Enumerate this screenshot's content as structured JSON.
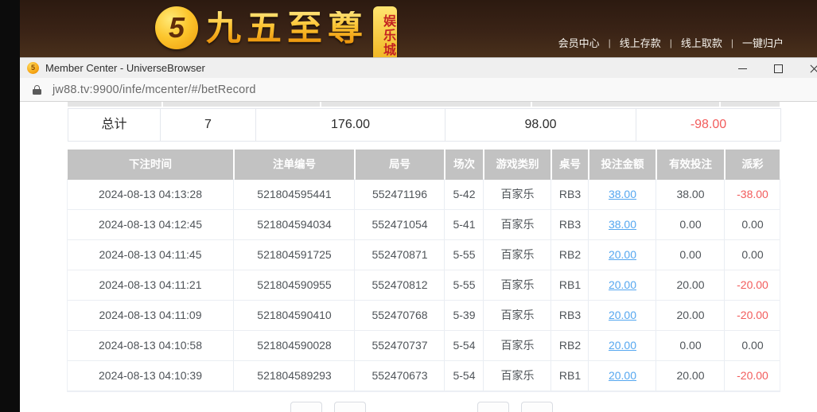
{
  "site_header": {
    "logo_glyph": "5",
    "brand_name": "九五至尊",
    "brand_badge": "娱乐城",
    "nav_separator": "|",
    "nav_links": [
      {
        "id": "member-center",
        "label": "会员中心"
      },
      {
        "id": "online-deposit",
        "label": "线上存款"
      },
      {
        "id": "online-withdraw",
        "label": "线上取款"
      },
      {
        "id": "one-key-transfer",
        "label": "一键归户"
      }
    ]
  },
  "browser": {
    "window_title": "Member Center - UniverseBrowser",
    "url": "jw88.tv:9900/infe/mcenter/#/betRecord"
  },
  "summary_row": {
    "label": "总计",
    "count": "7",
    "bet_amount": "176.00",
    "valid_bet": "98.00",
    "payout": "-98.00"
  },
  "bet_table": {
    "headers": [
      "下注时间",
      "注单编号",
      "局号",
      "场次",
      "游戏类别",
      "桌号",
      "投注金额",
      "有效投注",
      "派彩"
    ],
    "rows": [
      {
        "time": "2024-08-13 04:13:28",
        "order_id": "521804595441",
        "round_id": "552471196",
        "session": "5-42",
        "game_type": "百家乐",
        "table_no": "RB3",
        "bet_amount": "38.00",
        "valid_bet": "38.00",
        "payout": "-38.00"
      },
      {
        "time": "2024-08-13 04:12:45",
        "order_id": "521804594034",
        "round_id": "552471054",
        "session": "5-41",
        "game_type": "百家乐",
        "table_no": "RB3",
        "bet_amount": "38.00",
        "valid_bet": "0.00",
        "payout": "0.00"
      },
      {
        "time": "2024-08-13 04:11:45",
        "order_id": "521804591725",
        "round_id": "552470871",
        "session": "5-55",
        "game_type": "百家乐",
        "table_no": "RB2",
        "bet_amount": "20.00",
        "valid_bet": "0.00",
        "payout": "0.00"
      },
      {
        "time": "2024-08-13 04:11:21",
        "order_id": "521804590955",
        "round_id": "552470812",
        "session": "5-55",
        "game_type": "百家乐",
        "table_no": "RB1",
        "bet_amount": "20.00",
        "valid_bet": "20.00",
        "payout": "-20.00"
      },
      {
        "time": "2024-08-13 04:11:09",
        "order_id": "521804590410",
        "round_id": "552470768",
        "session": "5-39",
        "game_type": "百家乐",
        "table_no": "RB3",
        "bet_amount": "20.00",
        "valid_bet": "20.00",
        "payout": "-20.00"
      },
      {
        "time": "2024-08-13 04:10:58",
        "order_id": "521804590028",
        "round_id": "552470737",
        "session": "5-54",
        "game_type": "百家乐",
        "table_no": "RB2",
        "bet_amount": "20.00",
        "valid_bet": "0.00",
        "payout": "0.00"
      },
      {
        "time": "2024-08-13 04:10:39",
        "order_id": "521804589293",
        "round_id": "552470673",
        "session": "5-54",
        "game_type": "百家乐",
        "table_no": "RB1",
        "bet_amount": "20.00",
        "valid_bet": "20.00",
        "payout": "-20.00"
      }
    ]
  },
  "colors": {
    "brand_gold": "#f7b821",
    "badge_text": "#c42121",
    "header_brown": "#3a2316",
    "table_header_gray": "#c2c2c2",
    "link_blue": "#55a7f0",
    "negative_red": "#f25c5c"
  }
}
